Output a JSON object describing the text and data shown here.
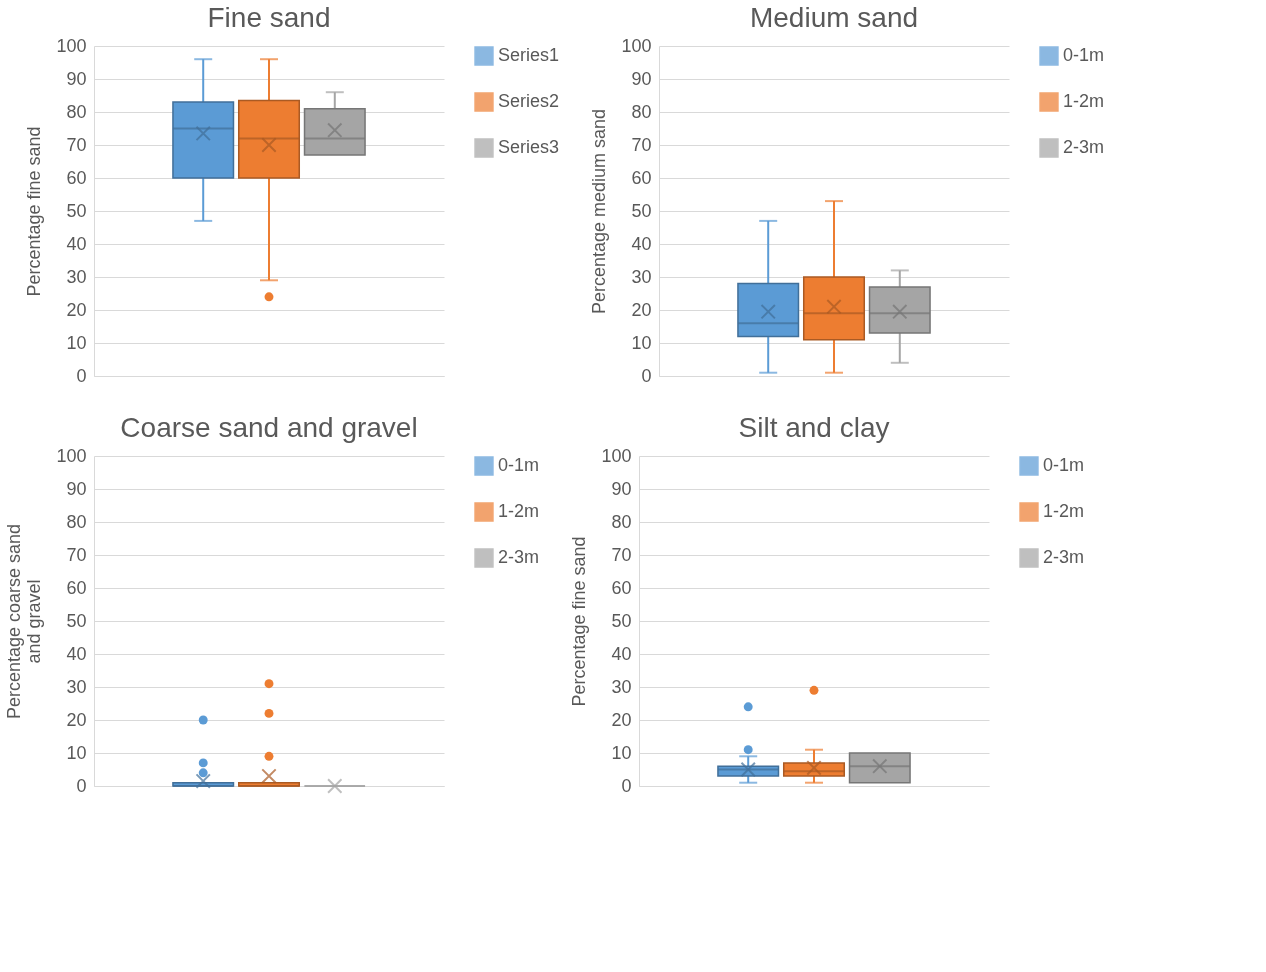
{
  "chart_data": [
    {
      "type": "box",
      "title": "Fine sand",
      "ylabel": "Percentage fine sand",
      "categories": [
        null
      ],
      "ylim": [
        0,
        100
      ],
      "yticks": [
        0,
        10,
        20,
        30,
        40,
        50,
        60,
        70,
        80,
        90,
        100
      ],
      "grid": "y",
      "legend": "right",
      "tick_labels": "y",
      "series": [
        {
          "name": "Series1",
          "color": "#5b9bd5",
          "boxes": [
            {
              "low": 47,
              "q1": 60,
              "median": 75,
              "q3": 83,
              "high": 96,
              "mean": 73.5
            }
          ]
        },
        {
          "name": "Series2",
          "color": "#ed7d31",
          "boxes": [
            {
              "low": 29,
              "q1": 60,
              "median": 72,
              "q3": 83.5,
              "high": 96,
              "mean": 70,
              "outliers": [
                24
              ]
            }
          ]
        },
        {
          "name": "Series3",
          "color": "#a5a5a5",
          "boxes": [
            {
              "low": 67,
              "q1": 67,
              "median": 72,
              "q3": 81,
              "high": 86,
              "mean": 74.5
            }
          ]
        }
      ]
    },
    {
      "type": "box",
      "title": "Medium sand",
      "ylabel": "Percentage medium sand",
      "categories": [
        null
      ],
      "ylim": [
        0,
        100
      ],
      "yticks": [
        0,
        10,
        20,
        30,
        40,
        50,
        60,
        70,
        80,
        90,
        100
      ],
      "grid": "y",
      "legend": "right",
      "tick_labels": "y",
      "series": [
        {
          "name": "0-1m",
          "color": "#5b9bd5",
          "boxes": [
            {
              "low": 1,
              "q1": 12,
              "median": 16,
              "q3": 28,
              "high": 47,
              "mean": 19.5
            }
          ]
        },
        {
          "name": "1-2m",
          "color": "#ed7d31",
          "boxes": [
            {
              "low": 1,
              "q1": 11,
              "median": 19,
              "q3": 30,
              "high": 53,
              "mean": 21
            }
          ]
        },
        {
          "name": "2-3m",
          "color": "#a5a5a5",
          "boxes": [
            {
              "low": 4,
              "q1": 13,
              "median": 19,
              "q3": 27,
              "high": 32,
              "mean": 19.5
            }
          ]
        }
      ]
    },
    {
      "type": "box",
      "title": "Coarse sand and gravel",
      "ylabel": "Percentage coarse sand and gravel",
      "categories": [
        null
      ],
      "ylim": [
        0,
        100
      ],
      "yticks": [
        0,
        10,
        20,
        30,
        40,
        50,
        60,
        70,
        80,
        90,
        100
      ],
      "grid": "y",
      "legend": "right",
      "tick_labels": "y",
      "series": [
        {
          "name": "0-1m",
          "color": "#5b9bd5",
          "boxes": [
            {
              "low": 0,
              "q1": 0,
              "median": 0,
              "q3": 1,
              "high": 1,
              "mean": 1.5,
              "outliers": [
                4,
                7,
                20
              ]
            }
          ]
        },
        {
          "name": "1-2m",
          "color": "#ed7d31",
          "boxes": [
            {
              "low": 0,
              "q1": 0,
              "median": 0,
              "q3": 1,
              "high": 1,
              "mean": 3,
              "outliers": [
                9,
                22,
                31
              ]
            }
          ]
        },
        {
          "name": "2-3m",
          "color": "#a5a5a5",
          "boxes": [
            {
              "low": 0,
              "q1": 0,
              "median": 0,
              "q3": 0,
              "high": 0,
              "mean": 0
            }
          ]
        }
      ]
    },
    {
      "type": "box",
      "title": "Silt and clay",
      "ylabel": "Percentage fine sand",
      "categories": [
        null
      ],
      "ylim": [
        0,
        100
      ],
      "yticks": [
        0,
        10,
        20,
        30,
        40,
        50,
        60,
        70,
        80,
        90,
        100
      ],
      "grid": "y",
      "legend": "right",
      "tick_labels": "y",
      "series": [
        {
          "name": "0-1m",
          "color": "#5b9bd5",
          "boxes": [
            {
              "low": 1,
              "q1": 3,
              "median": 5,
              "q3": 6,
              "high": 9,
              "mean": 5,
              "outliers": [
                11,
                24
              ]
            }
          ]
        },
        {
          "name": "1-2m",
          "color": "#ed7d31",
          "boxes": [
            {
              "low": 1,
              "q1": 3,
              "median": 4.5,
              "q3": 7,
              "high": 11,
              "mean": 5.5,
              "outliers": [
                29
              ]
            }
          ]
        },
        {
          "name": "2-3m",
          "color": "#a5a5a5",
          "boxes": [
            {
              "low": 1,
              "q1": 1,
              "median": 6,
              "q3": 10,
              "high": 10,
              "mean": 6
            }
          ]
        }
      ]
    }
  ]
}
